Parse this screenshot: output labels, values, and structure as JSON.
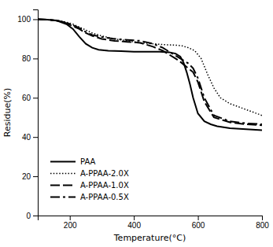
{
  "chart_data": {
    "type": "line",
    "xlabel": "Temperature(°C)",
    "ylabel": "Residue(%)",
    "xlim": [
      100,
      800
    ],
    "ylim": [
      0,
      105
    ],
    "xticks": [
      200,
      400,
      600,
      800
    ],
    "yticks": [
      0,
      20,
      40,
      60,
      80,
      100
    ],
    "grid": false,
    "legend": "lower left",
    "series": [
      {
        "name": "PAA",
        "color": "#000000",
        "line_style": "solid",
        "x": [
          100,
          130,
          160,
          190,
          210,
          230,
          250,
          270,
          290,
          320,
          360,
          400,
          440,
          480,
          510,
          530,
          545,
          555,
          565,
          575,
          585,
          600,
          620,
          640,
          660,
          700,
          750,
          800
        ],
        "values": [
          100,
          99.8,
          99.3,
          97.5,
          95,
          91,
          87.5,
          85.5,
          84.5,
          84,
          83.8,
          83.5,
          83.5,
          83.5,
          83.2,
          82.5,
          81,
          78,
          73,
          67,
          60,
          52,
          48,
          46.5,
          45.5,
          44.5,
          44,
          43.5
        ]
      },
      {
        "name": "A-PPAA-2.0X",
        "color": "#000000",
        "line_style": "dotted",
        "x": [
          100,
          130,
          160,
          190,
          210,
          230,
          250,
          270,
          300,
          340,
          380,
          420,
          460,
          500,
          530,
          550,
          570,
          590,
          610,
          630,
          650,
          670,
          700,
          750,
          800
        ],
        "values": [
          100,
          99.8,
          99.5,
          98.5,
          97.5,
          96,
          94.5,
          93,
          91.5,
          90,
          89,
          88,
          87.5,
          87,
          86.8,
          86.5,
          85.5,
          84,
          80,
          72,
          65,
          60,
          57,
          54,
          51
        ]
      },
      {
        "name": "A-PPAA-1.0X",
        "color": "#000000",
        "line_style": "dashed",
        "x": [
          100,
          130,
          160,
          190,
          210,
          230,
          250,
          270,
          300,
          340,
          380,
          420,
          460,
          490,
          510,
          525,
          540,
          555,
          570,
          585,
          600,
          620,
          650,
          700,
          750,
          800
        ],
        "values": [
          100,
          99.8,
          99.3,
          98,
          96.5,
          95,
          93,
          91.5,
          90,
          89,
          88.5,
          88,
          86,
          84,
          82,
          80.5,
          79,
          77,
          75,
          73,
          68,
          58,
          50,
          47.5,
          46.5,
          46
        ]
      },
      {
        "name": "A-PPAA-0.5X",
        "color": "#000000",
        "line_style": "dashdot",
        "x": [
          100,
          130,
          160,
          190,
          210,
          230,
          250,
          270,
          300,
          340,
          380,
          420,
          460,
          490,
          510,
          525,
          540,
          555,
          570,
          585,
          600,
          620,
          650,
          700,
          750,
          800
        ],
        "values": [
          100,
          99.8,
          99.3,
          98.2,
          97,
          95.5,
          93.5,
          92,
          91,
          90,
          89.5,
          89,
          87.5,
          85.5,
          83.5,
          82,
          80.5,
          79,
          77.5,
          75,
          70,
          60,
          51,
          48,
          47,
          46.5
        ]
      }
    ]
  }
}
